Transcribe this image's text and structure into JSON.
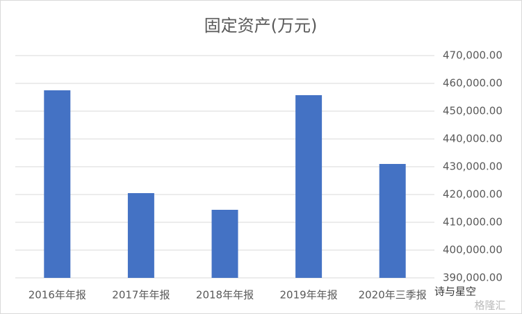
{
  "chart_data": {
    "type": "bar",
    "title": "固定资产(万元)",
    "categories": [
      "2016年年报",
      "2017年年报",
      "2018年年报",
      "2019年年报",
      "2020年三季报"
    ],
    "values": [
      457500,
      420500,
      414500,
      455750,
      431000
    ],
    "color": "#4472c4",
    "ylim": [
      390000,
      470000
    ],
    "yticks": [
      {
        "value": 390000,
        "label": "390,000.00"
      },
      {
        "value": 400000,
        "label": "400,000.00"
      },
      {
        "value": 410000,
        "label": "410,000.00"
      },
      {
        "value": 420000,
        "label": "420,000.00"
      },
      {
        "value": 430000,
        "label": "430,000.00"
      },
      {
        "value": 440000,
        "label": "440,000.00"
      },
      {
        "value": 450000,
        "label": "450,000.00"
      },
      {
        "value": 460000,
        "label": "460,000.00"
      },
      {
        "value": 470000,
        "label": "470,000.00"
      }
    ],
    "grid": true,
    "annotations": [
      "诗与星空",
      "格隆汇"
    ]
  }
}
